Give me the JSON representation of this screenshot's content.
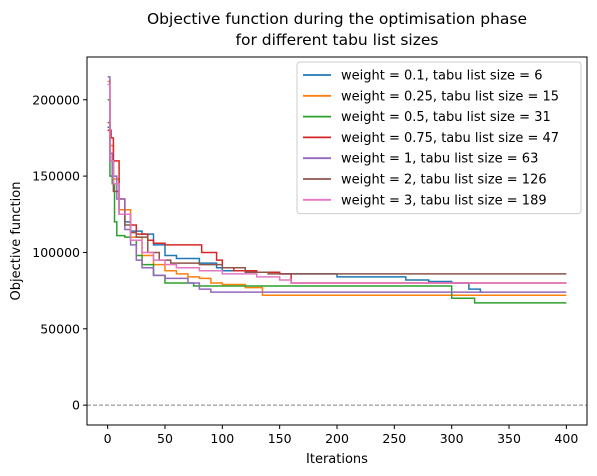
{
  "chart_data": {
    "type": "line",
    "title_line1": "Objective function during the optimisation phase",
    "title_line2": "for different tabu list sizes",
    "xlabel": "Iterations",
    "ylabel": "Objective function",
    "xlim": [
      -18,
      418
    ],
    "ylim": [
      -13000,
      228000
    ],
    "xticks": [
      0,
      50,
      100,
      150,
      200,
      250,
      300,
      350,
      400
    ],
    "yticks": [
      0,
      50000,
      100000,
      150000,
      200000
    ],
    "grid": false,
    "reference_line": {
      "y": 0,
      "style": "dashed",
      "color": "#808080"
    },
    "legend_position": "upper-right",
    "series": [
      {
        "name": "weight = 0.1, tabu list size = 6",
        "color": "#1f77b4",
        "points": [
          [
            0,
            182000
          ],
          [
            2,
            160000
          ],
          [
            5,
            145000
          ],
          [
            10,
            128000
          ],
          [
            15,
            120000
          ],
          [
            20,
            114000
          ],
          [
            30,
            112000
          ],
          [
            40,
            105000
          ],
          [
            50,
            98000
          ],
          [
            60,
            96000
          ],
          [
            80,
            93000
          ],
          [
            95,
            90000
          ],
          [
            100,
            88000
          ],
          [
            120,
            87000
          ],
          [
            150,
            86000
          ],
          [
            200,
            84000
          ],
          [
            260,
            82000
          ],
          [
            280,
            81000
          ],
          [
            300,
            80000
          ],
          [
            315,
            76000
          ],
          [
            325,
            74000
          ],
          [
            327,
            74000
          ]
        ]
      },
      {
        "name": "weight = 0.25, tabu list size = 15",
        "color": "#ff7f0e",
        "points": [
          [
            0,
            212000
          ],
          [
            2,
            170000
          ],
          [
            5,
            148000
          ],
          [
            10,
            128000
          ],
          [
            20,
            110000
          ],
          [
            30,
            98000
          ],
          [
            40,
            92000
          ],
          [
            50,
            88000
          ],
          [
            60,
            86000
          ],
          [
            70,
            84000
          ],
          [
            80,
            83000
          ],
          [
            90,
            80000
          ],
          [
            100,
            79000
          ],
          [
            120,
            77000
          ],
          [
            130,
            77000
          ],
          [
            135,
            72000
          ],
          [
            200,
            72000
          ],
          [
            300,
            72000
          ],
          [
            400,
            72000
          ]
        ]
      },
      {
        "name": "weight = 0.5, tabu list size = 31",
        "color": "#2ca02c",
        "points": [
          [
            0,
            200000
          ],
          [
            2,
            150000
          ],
          [
            4,
            145000
          ],
          [
            6,
            120000
          ],
          [
            8,
            111000
          ],
          [
            15,
            110000
          ],
          [
            20,
            108000
          ],
          [
            25,
            98000
          ],
          [
            30,
            92000
          ],
          [
            40,
            85000
          ],
          [
            50,
            80000
          ],
          [
            70,
            80000
          ],
          [
            75,
            78000
          ],
          [
            100,
            78000
          ],
          [
            150,
            78000
          ],
          [
            200,
            78000
          ],
          [
            250,
            78000
          ],
          [
            290,
            78000
          ],
          [
            300,
            70000
          ],
          [
            315,
            70000
          ],
          [
            320,
            67000
          ],
          [
            350,
            67000
          ],
          [
            400,
            67000
          ]
        ]
      },
      {
        "name": "weight = 0.75, tabu list size = 47",
        "color": "#d62728",
        "points": [
          [
            0,
            180000
          ],
          [
            3,
            175000
          ],
          [
            5,
            160000
          ],
          [
            10,
            135000
          ],
          [
            15,
            125000
          ],
          [
            20,
            118000
          ],
          [
            25,
            112000
          ],
          [
            35,
            108000
          ],
          [
            40,
            106000
          ],
          [
            50,
            105000
          ],
          [
            80,
            105000
          ],
          [
            82,
            100000
          ],
          [
            95,
            95000
          ],
          [
            100,
            90000
          ],
          [
            110,
            88000
          ],
          [
            130,
            87000
          ],
          [
            150,
            86000
          ],
          [
            160,
            80000
          ],
          [
            200,
            80000
          ],
          [
            250,
            80000
          ],
          [
            300,
            80000
          ],
          [
            320,
            80000
          ],
          [
            330,
            80000
          ],
          [
            400,
            80000
          ]
        ]
      },
      {
        "name": "weight = 1, tabu list size = 63",
        "color": "#9467bd",
        "points": [
          [
            0,
            215000
          ],
          [
            2,
            165000
          ],
          [
            4,
            150000
          ],
          [
            8,
            135000
          ],
          [
            15,
            115000
          ],
          [
            20,
            105000
          ],
          [
            25,
            95000
          ],
          [
            30,
            90000
          ],
          [
            40,
            85000
          ],
          [
            50,
            83000
          ],
          [
            70,
            80000
          ],
          [
            80,
            76000
          ],
          [
            90,
            74000
          ],
          [
            120,
            74000
          ],
          [
            200,
            74000
          ],
          [
            300,
            74000
          ],
          [
            400,
            74000
          ]
        ]
      },
      {
        "name": "weight = 2, tabu list size = 126",
        "color": "#8c564b",
        "points": [
          [
            0,
            185000
          ],
          [
            2,
            160000
          ],
          [
            5,
            140000
          ],
          [
            10,
            125000
          ],
          [
            15,
            118000
          ],
          [
            20,
            113000
          ],
          [
            25,
            110000
          ],
          [
            35,
            100000
          ],
          [
            45,
            95000
          ],
          [
            55,
            93000
          ],
          [
            80,
            92000
          ],
          [
            100,
            90000
          ],
          [
            120,
            87000
          ],
          [
            140,
            86000
          ],
          [
            150,
            86000
          ],
          [
            200,
            86000
          ],
          [
            300,
            86000
          ],
          [
            400,
            86000
          ]
        ]
      },
      {
        "name": "weight = 3, tabu list size = 189",
        "color": "#e377c2",
        "points": [
          [
            0,
            210000
          ],
          [
            2,
            160000
          ],
          [
            5,
            145000
          ],
          [
            10,
            125000
          ],
          [
            20,
            108000
          ],
          [
            30,
            100000
          ],
          [
            40,
            95000
          ],
          [
            50,
            92000
          ],
          [
            60,
            90000
          ],
          [
            80,
            88000
          ],
          [
            100,
            86000
          ],
          [
            130,
            84000
          ],
          [
            150,
            82000
          ],
          [
            160,
            80000
          ],
          [
            200,
            80000
          ],
          [
            300,
            80000
          ],
          [
            400,
            80000
          ]
        ]
      }
    ]
  }
}
